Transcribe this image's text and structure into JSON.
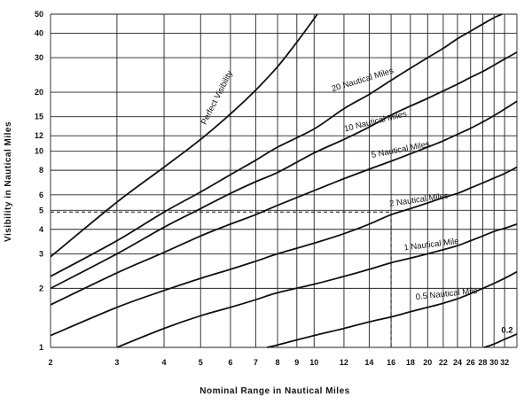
{
  "chart_data": {
    "type": "line",
    "title": "",
    "xlabel": "Nominal Range in Nautical Miles",
    "ylabel": "Visibility in Nautical Miles",
    "x_scale": "log",
    "y_scale": "log",
    "xlim": [
      2,
      34.5
    ],
    "ylim": [
      1,
      50
    ],
    "grid": true,
    "x_ticks": [
      2,
      3,
      4,
      5,
      6,
      7,
      8,
      9,
      10,
      12,
      14,
      16,
      18,
      20,
      22,
      24,
      26,
      28,
      30,
      32
    ],
    "y_ticks": [
      1,
      2,
      3,
      4,
      5,
      6,
      8,
      10,
      12,
      15,
      20,
      30,
      40,
      50
    ],
    "x_tick_labels": [
      "2",
      "3",
      "4",
      "5",
      "6",
      "7",
      "8",
      "9",
      "10",
      "12",
      "14",
      "16",
      "18",
      "20",
      "22",
      "24",
      "26",
      "28",
      "30",
      "32"
    ],
    "y_tick_labels": [
      "1",
      "2",
      "3",
      "4",
      "5",
      "6",
      "8",
      "10",
      "12",
      "15",
      "20",
      "30",
      "40",
      "50"
    ],
    "series": [
      {
        "name": "Perfect Visibility",
        "x": [
          2,
          3,
          4,
          5,
          6,
          7,
          8,
          9,
          10.2
        ],
        "y": [
          2.9,
          5.5,
          8.3,
          11.5,
          15.5,
          20.5,
          27,
          36,
          50
        ]
      },
      {
        "name": "20 Nautical Miles",
        "x": [
          2,
          3,
          4,
          5,
          6,
          7,
          8,
          10,
          12,
          14,
          16,
          18,
          20,
          22,
          24,
          26,
          28,
          30,
          31.5
        ],
        "y": [
          2.3,
          3.5,
          4.9,
          6.2,
          7.6,
          9.0,
          10.5,
          13,
          16.5,
          19.5,
          23,
          26.5,
          30,
          33.5,
          37.5,
          41,
          44.5,
          48,
          50
        ]
      },
      {
        "name": "10 Nautical Miles",
        "x": [
          2,
          3,
          4,
          5,
          6,
          7,
          8,
          10,
          12,
          14,
          16,
          18,
          20,
          22,
          24,
          26,
          28,
          30,
          32,
          34.5
        ],
        "y": [
          2.0,
          3.0,
          4.1,
          5.1,
          6.1,
          7.0,
          7.8,
          9.8,
          11.5,
          13.3,
          15.3,
          17,
          18.6,
          20.3,
          22,
          23.8,
          25.5,
          27.5,
          29.5,
          32
        ]
      },
      {
        "name": "5 Nautical Miles",
        "x": [
          2,
          3,
          4,
          5,
          6,
          7,
          8,
          10,
          12,
          14,
          16,
          18,
          20,
          22,
          24,
          26,
          28,
          30,
          32,
          34.5
        ],
        "y": [
          1.65,
          2.4,
          3.05,
          3.7,
          4.25,
          4.75,
          5.3,
          6.3,
          7.25,
          8.1,
          8.9,
          9.7,
          10.5,
          11.3,
          12.2,
          13.1,
          14.1,
          15.2,
          16.4,
          18
        ]
      },
      {
        "name": "2 Nautical Miles",
        "x": [
          2,
          3,
          4,
          5,
          6,
          7,
          8,
          10,
          12,
          14,
          16,
          18,
          20,
          22,
          24,
          26,
          28,
          30,
          32,
          34.5
        ],
        "y": [
          1.15,
          1.6,
          1.95,
          2.25,
          2.5,
          2.75,
          3.0,
          3.4,
          3.8,
          4.25,
          4.75,
          5.1,
          5.45,
          5.8,
          6.1,
          6.5,
          6.9,
          7.3,
          7.7,
          8.3
        ]
      },
      {
        "name": "1 Nautical Mile",
        "x": [
          3,
          4,
          5,
          6,
          7,
          8,
          10,
          12,
          14,
          16,
          18,
          20,
          22,
          24,
          26,
          28,
          30,
          32,
          34.5
        ],
        "y": [
          1.0,
          1.25,
          1.45,
          1.6,
          1.75,
          1.9,
          2.1,
          2.3,
          2.5,
          2.7,
          2.85,
          3.0,
          3.15,
          3.3,
          3.5,
          3.7,
          3.9,
          4.05,
          4.25
        ]
      },
      {
        "name": "0.5 Nautical Mile",
        "x": [
          7.5,
          8,
          10,
          12,
          14,
          16,
          18,
          20,
          22,
          24,
          26,
          28,
          30,
          32,
          34.5
        ],
        "y": [
          1.0,
          1.03,
          1.15,
          1.25,
          1.35,
          1.43,
          1.52,
          1.6,
          1.68,
          1.77,
          1.88,
          2.0,
          2.12,
          2.25,
          2.43
        ]
      },
      {
        "name": "0.2",
        "x": [
          28.2,
          30,
          32,
          34.5
        ],
        "y": [
          1.0,
          1.04,
          1.1,
          1.17
        ]
      }
    ],
    "reference": {
      "x": 16,
      "y": 4.9,
      "from_x": 2,
      "to_y": 1
    },
    "curve_labels": [
      {
        "text": "Perfect Visibility",
        "at_x": 5.6,
        "at_y": 18.5,
        "rotate": -63
      },
      {
        "text": "20 Nautical Miles",
        "at_x": 13.5,
        "at_y": 22.5,
        "rotate": -17
      },
      {
        "text": "10 Nautical Miles",
        "at_x": 14.6,
        "at_y": 13.8,
        "rotate": -14
      },
      {
        "text": "5 Nautical Miles",
        "at_x": 17.0,
        "at_y": 9.9,
        "rotate": -11
      },
      {
        "text": "2 Nautical Miles",
        "at_x": 19.0,
        "at_y": 5.5,
        "rotate": -8
      },
      {
        "text": "1 Nautical Mile",
        "at_x": 20.5,
        "at_y": 3.25,
        "rotate": -7
      },
      {
        "text": "0.5 Nautical Mile",
        "at_x": 22.5,
        "at_y": 1.82,
        "rotate": -6
      },
      {
        "text": "0.2",
        "at_x": 32.5,
        "at_y": 1.19,
        "rotate": 0
      }
    ]
  }
}
